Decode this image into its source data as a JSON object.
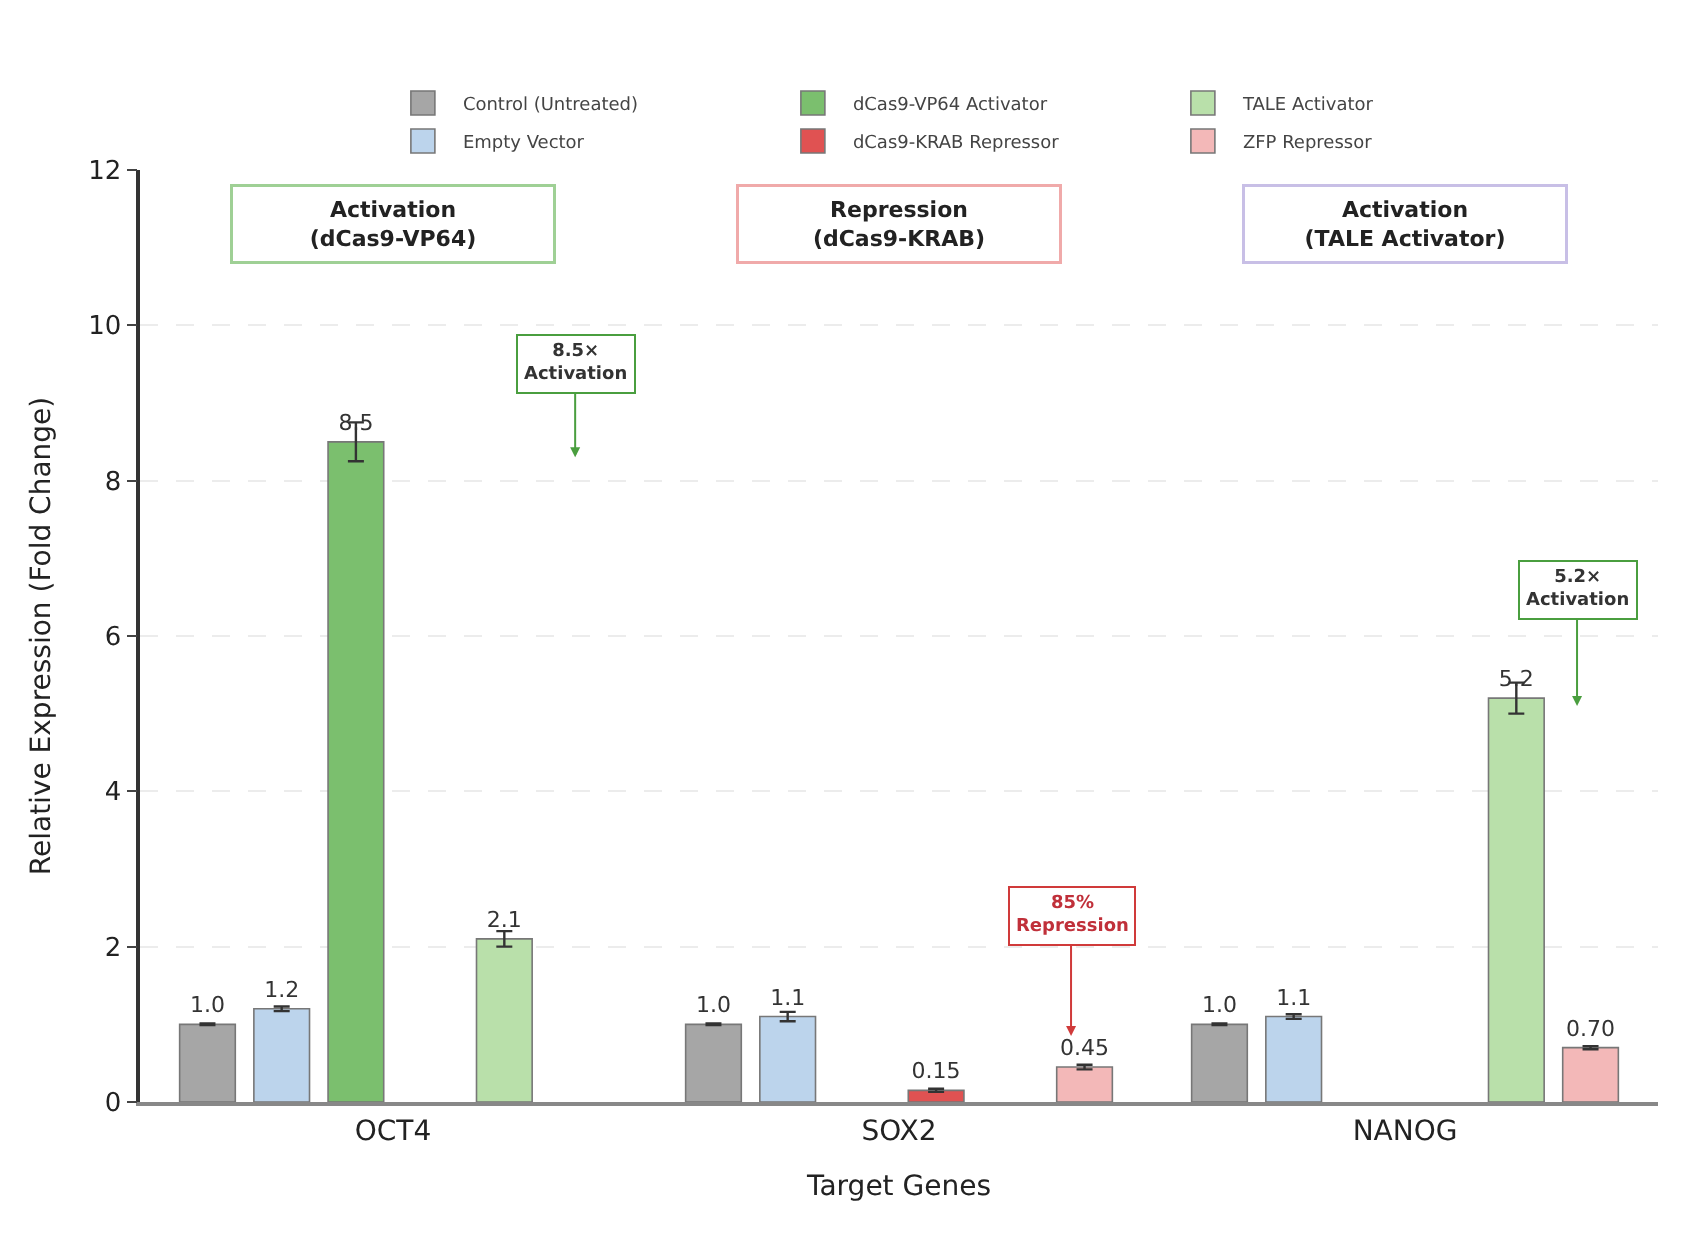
{
  "chart_data": {
    "type": "bar",
    "xlabel": "Target Genes",
    "ylabel": "Relative Expression (Fold Change)",
    "categories": [
      "OCT4",
      "SOX2",
      "NANOG"
    ],
    "series": [
      {
        "name": "Control (Untreated)",
        "color": "#a6a6a6",
        "values": [
          1.0,
          1.0,
          1.0
        ],
        "value_labels": [
          "1.0",
          "1.0",
          "1.0"
        ],
        "errors": [
          0.01,
          0.01,
          0.01
        ]
      },
      {
        "name": "Empty Vector",
        "color": "#bcd4ec",
        "values": [
          1.2,
          1.1,
          1.1
        ],
        "value_labels": [
          "1.2",
          "1.1",
          "1.1"
        ],
        "errors": [
          0.03,
          0.06,
          0.03
        ]
      },
      {
        "name": "dCas9-VP64 Activator",
        "color": "#7bbf6e",
        "values": [
          8.5,
          null,
          null
        ],
        "value_labels": [
          "8.5",
          null,
          null
        ],
        "errors": [
          0.25,
          null,
          null
        ]
      },
      {
        "name": "dCas9-KRAB Repressor",
        "color": "#e05252",
        "values": [
          null,
          0.15,
          null
        ],
        "value_labels": [
          null,
          "0.15",
          null
        ],
        "errors": [
          null,
          0.02,
          null
        ]
      },
      {
        "name": "TALE Activator",
        "color": "#b9e0aa",
        "values": [
          2.1,
          null,
          5.2
        ],
        "value_labels": [
          "2.1",
          null,
          "5.2"
        ],
        "errors": [
          0.1,
          null,
          0.2
        ]
      },
      {
        "name": "ZFP Repressor",
        "color": "#f3b8b8",
        "values": [
          null,
          0.45,
          0.7
        ],
        "value_labels": [
          null,
          "0.45",
          "0.70"
        ],
        "errors": [
          null,
          0.03,
          0.02
        ]
      }
    ],
    "ylim": [
      0,
      12
    ],
    "yticks": [
      0,
      2,
      4,
      6,
      8,
      10,
      12
    ],
    "grid": "y",
    "legend": "top",
    "annotations": [
      "Activation\n(dCas9-VP64)",
      "Repression\n(dCas9-KRAB)",
      "Activation\n(TALE Activator)",
      "8.5×\nActivation",
      "85%\nRepression",
      "5.2×\nActivation"
    ]
  }
}
